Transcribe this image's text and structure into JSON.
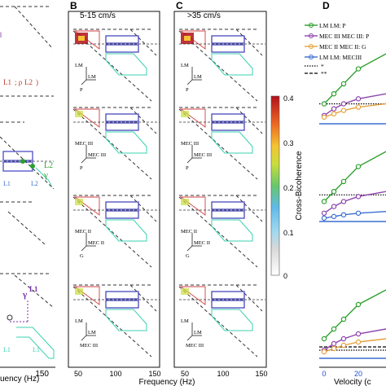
{
  "panels": {
    "B": {
      "label": "B",
      "title": "5-15 cm/s"
    },
    "C": {
      "label": "C",
      "title": ">35 cm/s"
    },
    "D": {
      "label": "D"
    }
  },
  "triads": [
    "LM|LM|P",
    "MEC III|MEC III|P",
    "MEC II|MEC II|G",
    "LM|LM|MEC III"
  ],
  "axes": {
    "freq_label_left": "uency (Hz)",
    "freq_label_mid": "Frequency (Hz)",
    "freq_ticks": [
      "50",
      "100",
      "150"
    ],
    "velocity_label": "Velocity (c",
    "velocity_ticks": [
      "0",
      "20"
    ]
  },
  "colorbar": {
    "label": "Cross-Bicoherence",
    "ticks": [
      "0.4",
      "0.3",
      "0.2",
      "0.1",
      "0"
    ]
  },
  "legend": [
    {
      "label": "LM LM: P",
      "color": "#2ca02c",
      "style": "solid-circle"
    },
    {
      "label": "MEC III MEC III: P",
      "color": "#8e44ad",
      "style": "solid-circle"
    },
    {
      "label": "MEC II MEC II: G",
      "color": "#e6a23c",
      "style": "solid-circle"
    },
    {
      "label": "LM LM: MECIII",
      "color": "#3b6fd1",
      "style": "solid-circle"
    },
    {
      "label": "*",
      "color": "#000000",
      "style": "dotted"
    },
    {
      "label": "**",
      "color": "#000000",
      "style": "dashed"
    }
  ],
  "left_annotations": {
    "a1": "L1",
    "a2": "L2",
    "a3": "L1",
    "a4": "L2",
    "a5": "γ",
    "a6": "γ",
    "a7": "L1",
    "a8": "L1",
    "a9": "L1"
  },
  "chart_data": [
    {
      "type": "line",
      "title": "",
      "xlabel": "Velocity (c",
      "series": [
        {
          "name": "LM LM: P",
          "color": "#2ca02c",
          "values": [
            0.12,
            0.18,
            0.24,
            0.33,
            0.42
          ]
        },
        {
          "name": "MEC III MEC III: P",
          "color": "#8e44ad",
          "values": [
            0.05,
            0.09,
            0.12,
            0.15,
            0.18
          ]
        },
        {
          "name": "MEC II MEC II: G",
          "color": "#e6a23c",
          "values": [
            0.04,
            0.06,
            0.08,
            0.1,
            0.12
          ]
        },
        {
          "name": "LM LM: MECIII",
          "color": "#3b6fd1",
          "values": [
            0.02,
            0.03,
            0.04,
            0.05,
            0.06
          ]
        }
      ]
    }
  ]
}
